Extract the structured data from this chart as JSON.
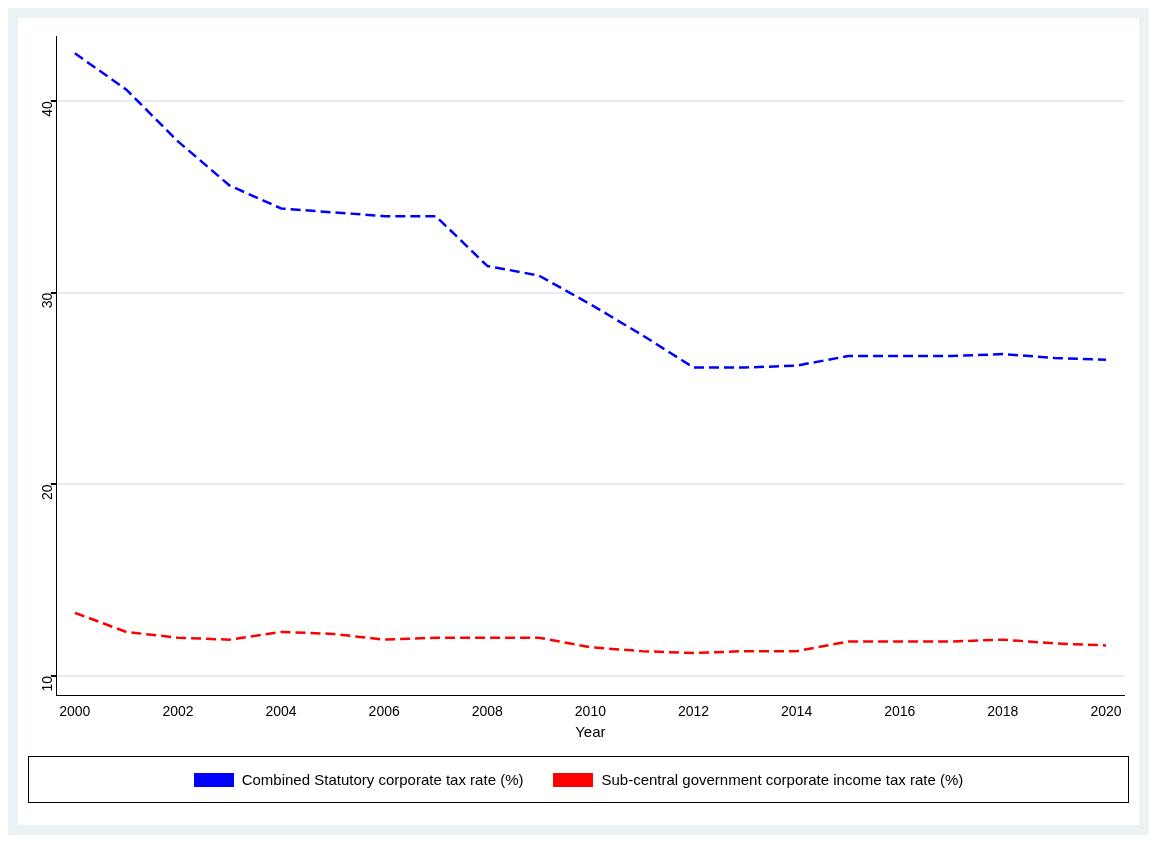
{
  "chart_data": {
    "type": "line",
    "xlabel": "Year",
    "x": [
      2000,
      2001,
      2002,
      2003,
      2004,
      2005,
      2006,
      2007,
      2008,
      2009,
      2010,
      2011,
      2012,
      2013,
      2014,
      2015,
      2016,
      2017,
      2018,
      2019,
      2020
    ],
    "series": [
      {
        "name": "Combined Statutory corporate tax rate (%)",
        "color": "#0000ff",
        "line_style": "dashed",
        "values": [
          42.5,
          40.6,
          37.9,
          35.6,
          34.4,
          34.2,
          34.0,
          34.0,
          31.4,
          30.9,
          29.4,
          27.8,
          26.1,
          26.1,
          26.2,
          26.7,
          26.7,
          26.7,
          26.8,
          26.6,
          26.5
        ]
      },
      {
        "name": "Sub-central government corporate income tax rate (%)",
        "color": "#ff0000",
        "line_style": "dashed",
        "values": [
          13.3,
          12.3,
          12.0,
          11.9,
          12.3,
          12.2,
          11.9,
          12.0,
          12.0,
          12.0,
          11.5,
          11.3,
          11.2,
          11.3,
          11.3,
          11.8,
          11.8,
          11.8,
          11.9,
          11.7,
          11.6
        ]
      }
    ],
    "xlim": [
      1999.65,
      2020.35
    ],
    "xticks": [
      2000,
      2002,
      2004,
      2006,
      2008,
      2010,
      2012,
      2014,
      2016,
      2018,
      2020
    ],
    "ylim": [
      9,
      43.4
    ],
    "yticks": [
      10,
      20,
      30,
      40
    ],
    "grid": "y",
    "legend": "bottom",
    "marker": "none"
  }
}
